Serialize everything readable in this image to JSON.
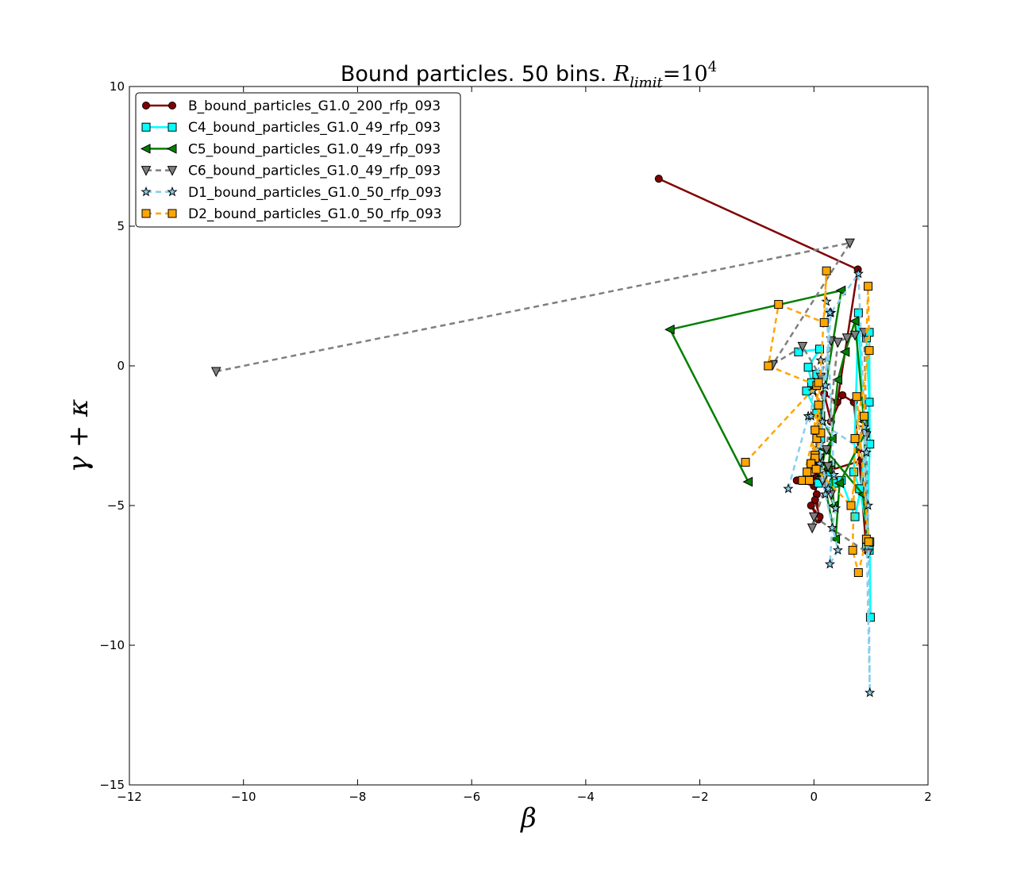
{
  "chart_data": {
    "type": "line",
    "title_main": "Bound particles. 50 bins. ",
    "title_math_symbol": "R",
    "title_math_subscript": "limit",
    "title_math_equals": "=10",
    "title_math_exponent": "4",
    "xlabel": "β",
    "ylabel": "γ + κ",
    "xlim": [
      -12,
      2
    ],
    "ylim": [
      -15,
      10
    ],
    "x_ticks": [
      -12,
      -10,
      -8,
      -6,
      -4,
      -2,
      0,
      2
    ],
    "y_ticks": [
      -15,
      -10,
      -5,
      0,
      5,
      10
    ],
    "x_tick_labels": [
      "−12",
      "−10",
      "−8",
      "−6",
      "−4",
      "−2",
      "0",
      "2"
    ],
    "y_tick_labels": [
      "−15",
      "−10",
      "−5",
      "0",
      "5",
      "10"
    ],
    "legend_position": "top-left",
    "series": [
      {
        "name": "B_bound_particles_G1.0_200_rfp_093",
        "color": "#800000",
        "marker": "circle",
        "dash": "solid",
        "linewidth": 2.5,
        "x": [
          -2.72,
          0.77,
          0.41,
          0.18,
          0.3,
          0.5,
          0.7,
          0.78,
          0.92,
          0.9,
          0.82,
          -0.3,
          0.0,
          0.05,
          0.08,
          -0.05,
          0.1,
          0.02,
          0.05,
          0.0,
          0.12,
          -0.02
        ],
        "y": [
          6.7,
          3.45,
          -1.3,
          -1.0,
          -2.0,
          -1.05,
          -1.3,
          -3.0,
          -6.6,
          -4.9,
          -3.4,
          -4.1,
          -4.3,
          -4.6,
          -5.5,
          -5.0,
          -5.4,
          -4.8,
          -4.0,
          -3.6,
          -1.4,
          -0.8
        ]
      },
      {
        "name": "C4_bound_particles_G1.0_49_rfp_093",
        "color": "#00ffff",
        "marker": "square",
        "dash": "solid",
        "linewidth": 2.5,
        "x": [
          -0.27,
          0.1,
          -0.1,
          -0.04,
          0.05,
          -0.13,
          0.05,
          0.12,
          0.08,
          0.25,
          0.35,
          0.48,
          0.72,
          0.82,
          0.97,
          0.92,
          0.97,
          0.98,
          0.92,
          0.97,
          0.78,
          0.7,
          0.8,
          0.98,
          0.99
        ],
        "y": [
          0.5,
          0.6,
          -0.05,
          -0.6,
          -0.3,
          -0.9,
          -1.7,
          -2.6,
          -4.2,
          -3.8,
          -4.2,
          -4.1,
          -5.4,
          -4.4,
          -1.3,
          1.0,
          1.2,
          -2.8,
          -6.5,
          -6.6,
          1.9,
          -3.8,
          -4.4,
          -6.3,
          -9.0
        ]
      },
      {
        "name": "C5_bound_particles_G1.0_49_rfp_093",
        "color": "#007f00",
        "marker": "triangle-left",
        "dash": "solid",
        "linewidth": 2.5,
        "x": [
          -1.15,
          -2.52,
          0.48,
          0.12,
          0.32,
          0.1,
          0.25,
          0.42,
          0.55,
          0.72,
          0.88,
          0.95,
          0.86,
          0.2,
          0.1,
          0.3,
          0.35,
          0.15,
          0.38,
          0.45,
          0.9
        ],
        "y": [
          -4.15,
          1.3,
          2.7,
          -1.8,
          -2.6,
          -3.4,
          -3.7,
          -0.5,
          0.5,
          1.6,
          -2.0,
          -6.3,
          -4.6,
          -3.0,
          -4.0,
          -3.5,
          -5.0,
          -3.9,
          -6.2,
          -4.2,
          -2.4
        ]
      },
      {
        "name": "C6_bound_particles_G1.0_49_rfp_093",
        "color": "#7f7f7f",
        "marker": "triangle-down",
        "dash": "dashed",
        "linewidth": 2.5,
        "x": [
          -10.48,
          0.63,
          -0.72,
          -0.2,
          0.12,
          0.3,
          0.05,
          0.22,
          0.42,
          0.58,
          0.72,
          0.88,
          0.92,
          0.95,
          0.0,
          -0.03,
          0.2,
          0.25,
          0.1,
          0.3,
          0.15
        ],
        "y": [
          -0.2,
          4.4,
          0.05,
          0.7,
          -0.4,
          0.9,
          -2.4,
          -3.0,
          0.85,
          1.0,
          1.1,
          1.2,
          -2.5,
          -6.7,
          -5.4,
          -5.8,
          -4.3,
          -3.6,
          -3.3,
          -4.6,
          -4.1
        ]
      },
      {
        "name": "D1_bound_particles_G1.0_50_rfp_093",
        "color": "#87ceeb",
        "marker": "star",
        "dash": "dashed",
        "linewidth": 2.5,
        "x": [
          -0.45,
          -0.1,
          0.25,
          0.38,
          0.32,
          0.28,
          0.42,
          0.2,
          0.05,
          0.15,
          0.3,
          0.78,
          0.95,
          0.98,
          0.88,
          0.92,
          -0.05,
          -0.02,
          0.12,
          0.2,
          0.1,
          0.28,
          0.22,
          0.35
        ],
        "y": [
          -4.4,
          -1.8,
          -4.4,
          -5.1,
          -5.8,
          -7.1,
          -6.6,
          -4.6,
          -3.0,
          -2.0,
          1.9,
          3.3,
          -5.0,
          -11.7,
          -2.2,
          -3.1,
          -1.8,
          -0.9,
          0.2,
          -0.7,
          -3.5,
          1.9,
          2.3,
          -3.9
        ]
      },
      {
        "name": "D2_bound_particles_G1.0_50_rfp_093",
        "color": "#ffa500",
        "marker": "square",
        "dash": "dashed",
        "linewidth": 2.5,
        "x": [
          -1.2,
          0.05,
          -0.8,
          -0.62,
          0.18,
          0.22,
          0.05,
          -0.18,
          0.02,
          0.08,
          0.12,
          0.02,
          -0.05,
          -0.12,
          -0.2,
          0.02,
          0.08,
          -0.05,
          -0.08,
          0.04,
          0.65,
          0.88,
          0.95,
          0.97,
          0.72,
          0.68,
          0.78,
          0.92,
          0.96,
          0.75
        ],
        "y": [
          -3.45,
          -0.7,
          0.0,
          2.2,
          1.55,
          3.4,
          -2.6,
          -4.1,
          -3.2,
          -1.4,
          -2.4,
          -3.3,
          -3.5,
          -3.8,
          -4.1,
          -2.3,
          -0.6,
          -3.5,
          -4.1,
          -3.7,
          -5.0,
          -1.8,
          2.85,
          0.55,
          -2.6,
          -6.6,
          -7.4,
          -6.2,
          -6.3,
          -1.1
        ]
      }
    ]
  }
}
